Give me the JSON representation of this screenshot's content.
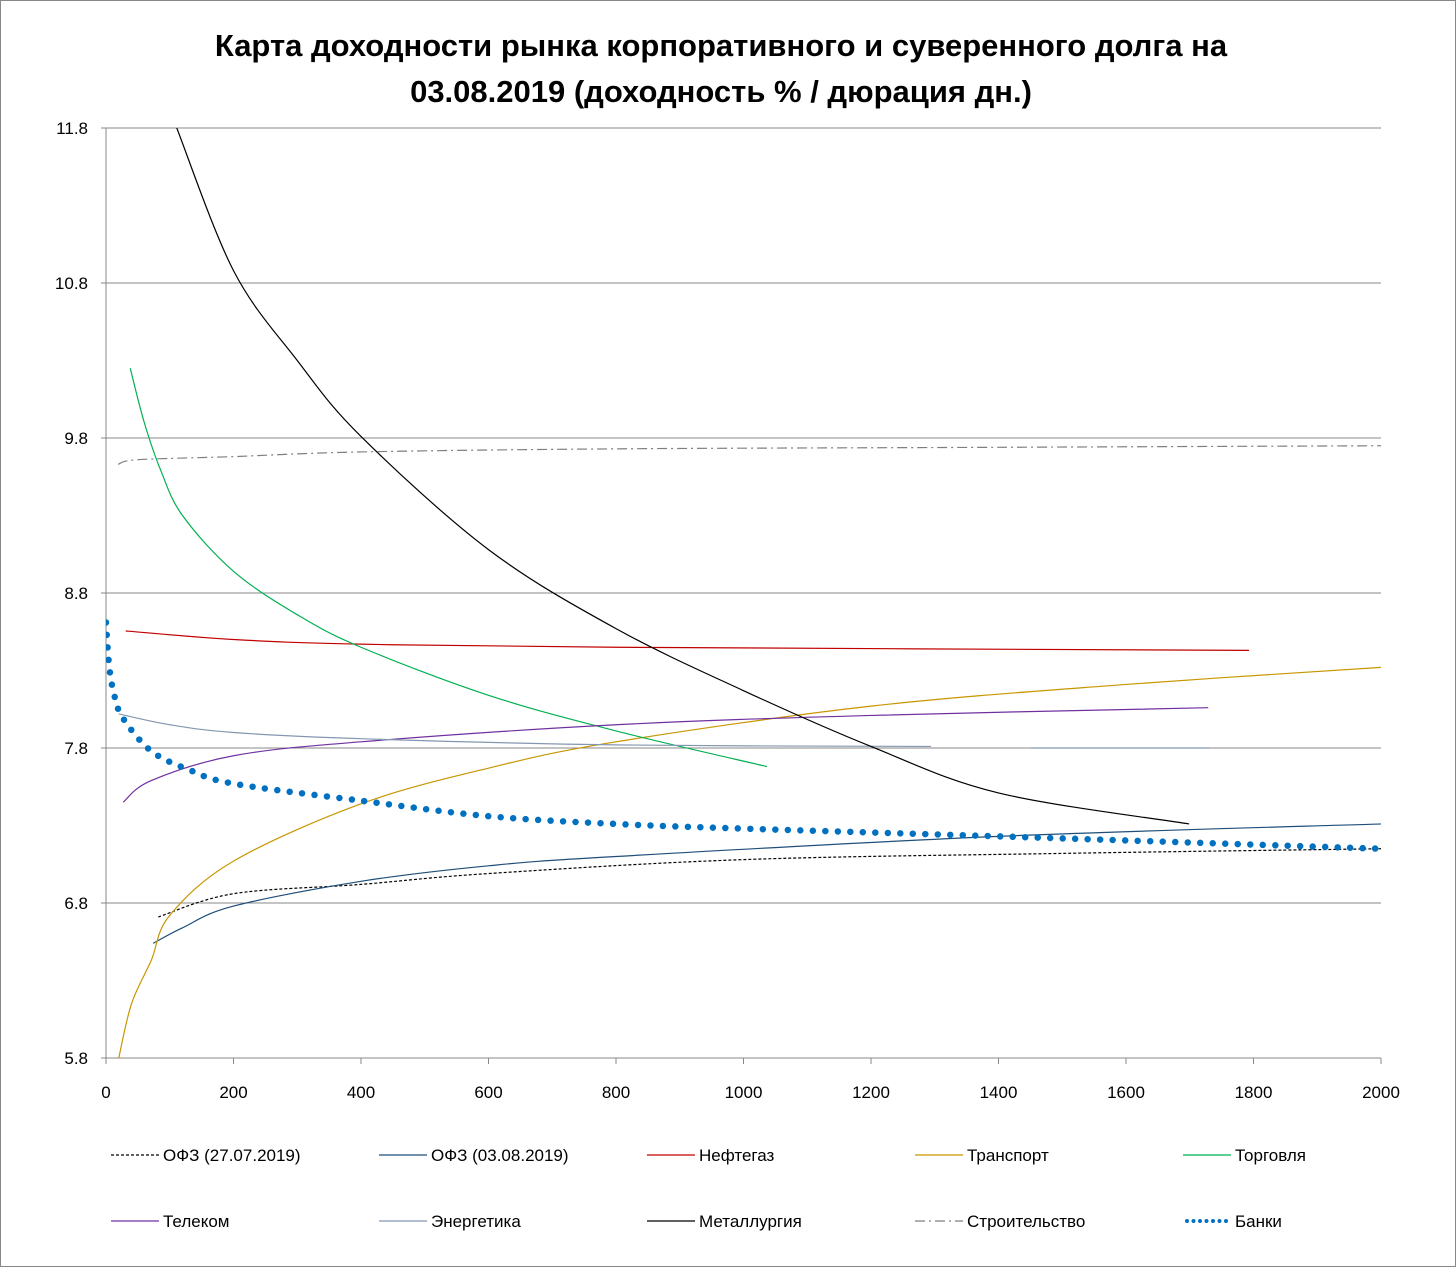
{
  "chart_data": {
    "type": "line",
    "title": "Карта доходности рынка корпоративного и суверенного долга на 03.08.2019 (доходность % / дюрация дн.)",
    "title_lines": [
      "Карта доходности рынка корпоративного и суверенного долга на",
      "03.08.2019 (доходность % / дюрация дн.)"
    ],
    "xlabel": "",
    "ylabel": "",
    "xlim": [
      0,
      2000
    ],
    "ylim": [
      5.8,
      11.8
    ],
    "xticks": [
      "0",
      "200",
      "400",
      "600",
      "800",
      "1000",
      "1200",
      "1400",
      "1600",
      "1800",
      "2000"
    ],
    "yticks": [
      "5.8",
      "6.8",
      "7.8",
      "8.8",
      "9.8",
      "10.8",
      "11.8"
    ],
    "grid": "horizontal",
    "legend": "bottom",
    "series": [
      {
        "name": "ОФЗ (27.07.2019)",
        "color": "#000000",
        "style": "dashed",
        "x": [
          82,
          200,
          400,
          600,
          1000,
          1500,
          2000
        ],
        "y": [
          6.71,
          6.86,
          6.92,
          6.99,
          7.08,
          7.12,
          7.15
        ]
      },
      {
        "name": "ОФЗ (03.08.2019)",
        "color": "#1f4e79",
        "style": "solid",
        "x": [
          74,
          120,
          200,
          400,
          600,
          800,
          1400,
          2000
        ],
        "y": [
          6.54,
          6.64,
          6.78,
          6.94,
          7.04,
          7.1,
          7.23,
          7.31
        ]
      },
      {
        "name": "Нефтегаз",
        "color": "#c00000",
        "style": "solid",
        "x": [
          31,
          200,
          400,
          800,
          1793
        ],
        "y": [
          8.555,
          8.5,
          8.47,
          8.45,
          8.43
        ]
      },
      {
        "name": "Транспорт",
        "color": "#c89600",
        "style": "solid",
        "x": [
          20,
          40,
          71,
          100,
          200,
          400,
          600,
          800,
          1200,
          1600,
          2000
        ],
        "y": [
          5.8,
          6.15,
          6.43,
          6.72,
          7.07,
          7.44,
          7.67,
          7.84,
          8.07,
          8.21,
          8.32
        ]
      },
      {
        "name": "Торговля",
        "color": "#00b050",
        "style": "solid",
        "x": [
          38,
          60,
          86,
          120,
          200,
          300,
          400,
          600,
          800,
          1037
        ],
        "y": [
          10.25,
          9.9,
          9.59,
          9.3,
          8.94,
          8.66,
          8.45,
          8.14,
          7.91,
          7.68
        ]
      },
      {
        "name": "Телеком",
        "color": "#7030a0",
        "style": "solid",
        "x": [
          27,
          71,
          200,
          400,
          800,
          1200,
          1729
        ],
        "y": [
          7.45,
          7.59,
          7.75,
          7.84,
          7.95,
          8.01,
          8.06
        ]
      },
      {
        "name": "Энергетика",
        "color": "#8497b0",
        "style": "solid",
        "x": [
          20,
          100,
          200,
          400,
          800,
          1294,
          null,
          1451,
          1731
        ],
        "y": [
          8.02,
          7.95,
          7.9,
          7.86,
          7.82,
          7.81,
          null,
          7.8,
          7.8
        ]
      },
      {
        "name": "Металлургия",
        "color": "#000000",
        "style": "solid",
        "x": [
          111,
          200,
          300,
          400,
          600,
          800,
          1000,
          1200,
          1400,
          1699
        ],
        "y": [
          11.8,
          10.88,
          10.3,
          9.81,
          9.08,
          8.57,
          8.17,
          7.81,
          7.51,
          7.31
        ]
      },
      {
        "name": "Строительство",
        "color": "#7f7f7f",
        "style": "dashdot",
        "x": [
          19,
          50,
          200,
          400,
          800,
          1400,
          2000
        ],
        "y": [
          9.63,
          9.66,
          9.68,
          9.71,
          9.73,
          9.74,
          9.75
        ]
      },
      {
        "name": "Банки",
        "color": "#0070c0",
        "style": "dotted",
        "x": [
          0,
          5,
          13,
          27,
          71,
          130,
          200,
          400,
          600,
          800,
          1000,
          1400,
          2000
        ],
        "y": [
          8.61,
          8.33,
          8.14,
          7.99,
          7.78,
          7.66,
          7.57,
          7.46,
          7.36,
          7.31,
          7.28,
          7.23,
          7.15
        ]
      }
    ]
  }
}
